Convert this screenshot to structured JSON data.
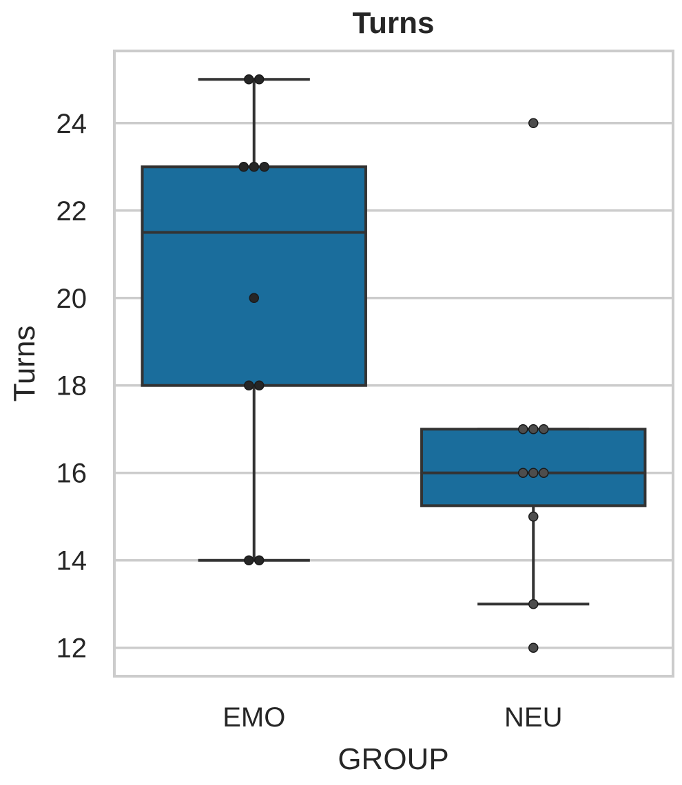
{
  "chart_data": {
    "type": "box",
    "title": "Turns",
    "xlabel": "GROUP",
    "ylabel": "Turns",
    "ylim": [
      11.35,
      25.65
    ],
    "yticks": [
      12,
      14,
      16,
      18,
      20,
      22,
      24
    ],
    "grid": true,
    "categories": [
      "EMO",
      "NEU"
    ],
    "box_color": "#1a6d9c",
    "line_color": "#333333",
    "series": [
      {
        "category": "EMO",
        "whisker_low": 14,
        "q1": 18,
        "median": 21.5,
        "q3": 23,
        "whisker_high": 25,
        "points": [
          14,
          14,
          18,
          18,
          20,
          23,
          23,
          23,
          25,
          25
        ],
        "point_color": "#262626"
      },
      {
        "category": "NEU",
        "whisker_low": 13,
        "q1": 15.25,
        "median": 16,
        "q3": 17,
        "whisker_high": 17,
        "points": [
          12,
          13,
          15,
          16,
          16,
          16,
          17,
          17,
          17,
          24
        ],
        "point_color": "#4d4d4d"
      }
    ]
  }
}
